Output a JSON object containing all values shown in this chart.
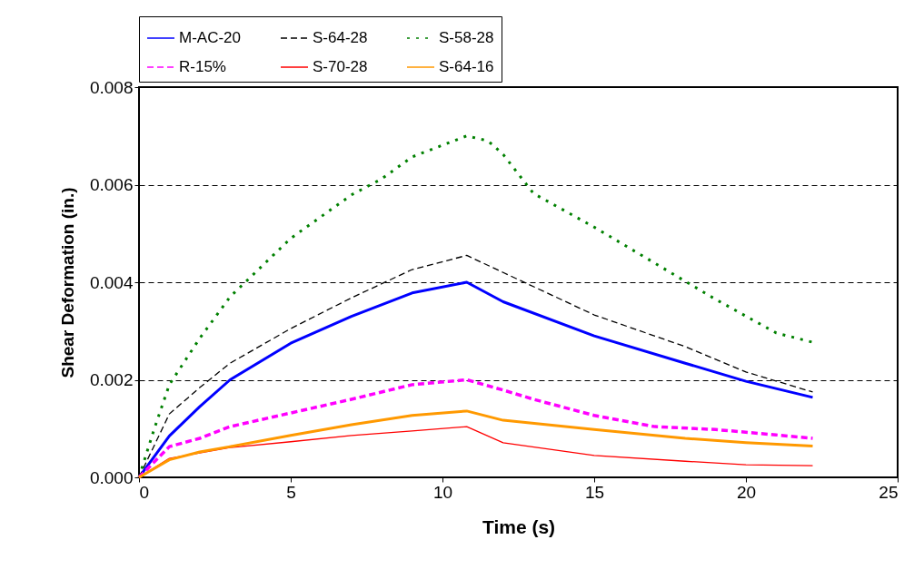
{
  "chart_data": {
    "type": "line",
    "xlabel": "Time (s)",
    "ylabel": "Shear Deformation (in.)",
    "xlim": [
      0,
      25
    ],
    "xticks": [
      0,
      5,
      10,
      15,
      20,
      25
    ],
    "ylim": [
      0,
      0.008
    ],
    "yticks": [
      {
        "value": 0,
        "label": "0.000"
      },
      {
        "value": 0.002,
        "label": "0.002"
      },
      {
        "value": 0.004,
        "label": "0.004"
      },
      {
        "value": 0.006,
        "label": "0.006"
      },
      {
        "value": 0.008,
        "label": "0.008"
      }
    ],
    "grid": "y",
    "legend": "top",
    "marker": "none",
    "x": [
      0,
      1,
      2,
      3,
      5,
      7,
      9,
      10.8,
      12,
      15,
      18,
      20,
      22.2
    ],
    "series": [
      {
        "name": "M-AC-20",
        "color": "#0000ff",
        "line_style": "solid",
        "values": [
          0,
          0.00085,
          0.00145,
          0.002,
          0.00275,
          0.0033,
          0.00378,
          0.004,
          0.0036,
          0.0029,
          0.00234,
          0.00197,
          0.00164
        ]
      },
      {
        "name": "S-64-28",
        "color": "#000000",
        "line_style": "dashed",
        "values": [
          0,
          0.0013,
          0.00184,
          0.00234,
          0.00305,
          0.00368,
          0.00426,
          0.00455,
          0.0042,
          0.00333,
          0.00268,
          0.00216,
          0.00175
        ]
      },
      {
        "name": "S-58-28",
        "color": "#008000",
        "line_style": "dotted",
        "x": [
          0,
          0.5,
          1,
          2,
          3,
          5,
          7,
          8,
          9,
          10.8,
          11.5,
          12,
          13,
          15,
          17,
          19,
          21,
          22.2
        ],
        "values": [
          0,
          0.00099,
          0.0019,
          0.00285,
          0.0037,
          0.0049,
          0.00579,
          0.00612,
          0.00657,
          0.007,
          0.0069,
          0.00662,
          0.00582,
          0.00513,
          0.00439,
          0.00365,
          0.00296,
          0.00277
        ]
      },
      {
        "name": "R-15%",
        "color": "#ff00ff",
        "line_style": "dashed",
        "x": [
          0,
          1,
          2,
          3,
          5,
          7,
          9,
          10.8,
          12,
          13,
          15,
          17,
          19,
          21,
          22.2
        ],
        "values": [
          0,
          0.00063,
          0.0008,
          0.00104,
          0.00132,
          0.0016,
          0.0019,
          0.002,
          0.00179,
          0.0016,
          0.00127,
          0.00104,
          0.00098,
          0.00087,
          0.0008
        ]
      },
      {
        "name": "S-70-28",
        "color": "#ff0000",
        "line_style": "solid",
        "values": [
          0,
          0.00039,
          0.0005,
          0.00061,
          0.00073,
          0.00086,
          0.00095,
          0.00104,
          0.00071,
          0.00045,
          0.00033,
          0.00026,
          0.00024
        ]
      },
      {
        "name": "S-64-16",
        "color": "#ff9900",
        "line_style": "solid",
        "values": [
          0,
          0.00036,
          0.00052,
          0.00063,
          0.00086,
          0.00108,
          0.00127,
          0.00136,
          0.00117,
          0.00098,
          0.0008,
          0.00071,
          0.00064
        ]
      }
    ]
  }
}
